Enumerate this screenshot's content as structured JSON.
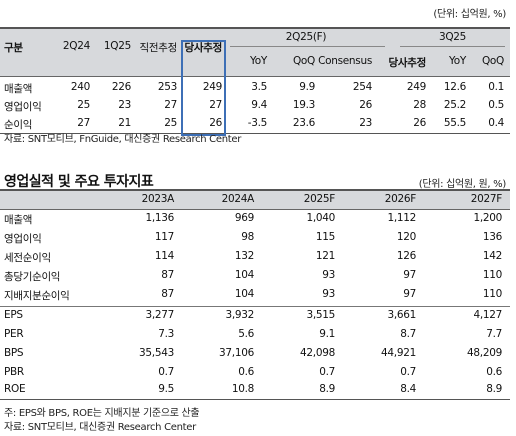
{
  "table1": {
    "unit": "(단위: 십억원, %)",
    "group_2q25": "2Q25(F)",
    "group_3q25": "3Q25",
    "headers": [
      "구분",
      "2Q24",
      "1Q25",
      "직전추정",
      "당사추정",
      "YoY",
      "QoQ",
      "Consensus",
      "당사추정",
      "YoY",
      "QoQ"
    ],
    "rows": [
      [
        "매출액",
        "240",
        "226",
        "253",
        "249",
        "3.5",
        "9.9",
        "254",
        "249",
        "12.6",
        "0.1"
      ],
      [
        "영업이익",
        "25",
        "23",
        "27",
        "27",
        "9.4",
        "19.3",
        "26",
        "28",
        "25.2",
        "0.5"
      ],
      [
        "순이익",
        "27",
        "21",
        "25",
        "26",
        "-3.5",
        "23.6",
        "23",
        "26",
        "55.5",
        "0.4"
      ]
    ],
    "source": "자료: SNT모티브, FnGuide, 대신증권 Research Center",
    "highlight_color": "#3d6fb6"
  },
  "table2": {
    "title": "영업실적 및 주요 투자지표",
    "unit": "(단위: 십억원, 원, %)",
    "headers": [
      "",
      "2023A",
      "2024A",
      "2025F",
      "2026F",
      "2027F"
    ],
    "rows": [
      [
        "매출액",
        "1,136",
        "969",
        "1,040",
        "1,112",
        "1,200"
      ],
      [
        "영업이익",
        "117",
        "98",
        "115",
        "120",
        "136"
      ],
      [
        "세전순이익",
        "114",
        "132",
        "121",
        "126",
        "142"
      ],
      [
        "총당기순이익",
        "87",
        "104",
        "93",
        "97",
        "110"
      ],
      [
        "지배지분순이익",
        "87",
        "104",
        "93",
        "97",
        "110"
      ],
      [
        "EPS",
        "3,277",
        "3,932",
        "3,515",
        "3,661",
        "4,127"
      ],
      [
        "PER",
        "7.3",
        "5.6",
        "9.1",
        "8.7",
        "7.7"
      ],
      [
        "BPS",
        "35,543",
        "37,106",
        "42,098",
        "44,921",
        "48,209"
      ],
      [
        "PBR",
        "0.7",
        "0.6",
        "0.7",
        "0.7",
        "0.6"
      ],
      [
        "ROE",
        "9.5",
        "10.8",
        "8.9",
        "8.4",
        "8.9"
      ]
    ],
    "note": "주: EPS와 BPS, ROE는 지배지분 기준으로 산출",
    "source": "자료: SNT모티브, 대신증권 Research Center"
  }
}
